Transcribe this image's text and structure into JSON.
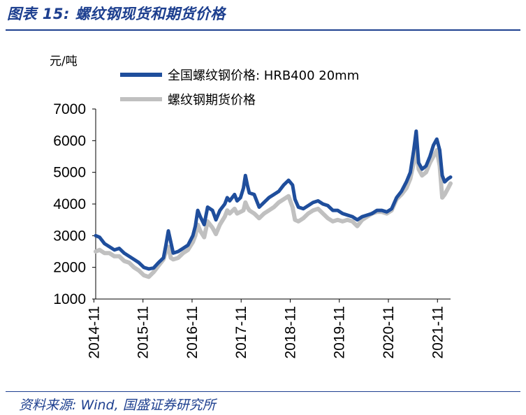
{
  "figure": {
    "title": "图表 15:  螺纹钢现货和期货价格",
    "source": "资料来源: Wind, 国盛证券研究所"
  },
  "chart_data": {
    "type": "line",
    "unit_label": "元/吨",
    "ylim": [
      1000,
      7000
    ],
    "yticks": [
      "7000",
      "6000",
      "5000",
      "4000",
      "3000",
      "2000",
      "1000"
    ],
    "xticks": [
      "2014-11",
      "2015-11",
      "2016-11",
      "2017-11",
      "2018-11",
      "2019-11",
      "2020-11",
      "2021-11"
    ],
    "x_range": [
      2014.87,
      2022.1
    ],
    "legend_position": "top-left",
    "series": [
      {
        "name": "全国螺纹钢价格: HRB400 20mm",
        "color": "#1f4e9c",
        "points": [
          [
            2014.87,
            3000
          ],
          [
            2014.95,
            2950
          ],
          [
            2015.05,
            2750
          ],
          [
            2015.15,
            2650
          ],
          [
            2015.25,
            2550
          ],
          [
            2015.35,
            2600
          ],
          [
            2015.45,
            2450
          ],
          [
            2015.55,
            2350
          ],
          [
            2015.65,
            2250
          ],
          [
            2015.75,
            2150
          ],
          [
            2015.85,
            2000
          ],
          [
            2015.95,
            1950
          ],
          [
            2016.05,
            1980
          ],
          [
            2016.15,
            2150
          ],
          [
            2016.25,
            2300
          ],
          [
            2016.3,
            2700
          ],
          [
            2016.35,
            3150
          ],
          [
            2016.4,
            2800
          ],
          [
            2016.45,
            2450
          ],
          [
            2016.55,
            2500
          ],
          [
            2016.65,
            2600
          ],
          [
            2016.75,
            2700
          ],
          [
            2016.85,
            3000
          ],
          [
            2016.9,
            3300
          ],
          [
            2016.95,
            3800
          ],
          [
            2017.0,
            3600
          ],
          [
            2017.08,
            3350
          ],
          [
            2017.15,
            3900
          ],
          [
            2017.25,
            3800
          ],
          [
            2017.32,
            3500
          ],
          [
            2017.4,
            3800
          ],
          [
            2017.5,
            4000
          ],
          [
            2017.55,
            4200
          ],
          [
            2017.6,
            4100
          ],
          [
            2017.7,
            4300
          ],
          [
            2017.75,
            4100
          ],
          [
            2017.82,
            4200
          ],
          [
            2017.88,
            4500
          ],
          [
            2017.92,
            4900
          ],
          [
            2017.96,
            4600
          ],
          [
            2018.0,
            4350
          ],
          [
            2018.1,
            4300
          ],
          [
            2018.2,
            3900
          ],
          [
            2018.3,
            4050
          ],
          [
            2018.4,
            4200
          ],
          [
            2018.5,
            4300
          ],
          [
            2018.6,
            4400
          ],
          [
            2018.7,
            4600
          ],
          [
            2018.8,
            4750
          ],
          [
            2018.88,
            4600
          ],
          [
            2018.93,
            4150
          ],
          [
            2019.0,
            3900
          ],
          [
            2019.1,
            3850
          ],
          [
            2019.2,
            3950
          ],
          [
            2019.3,
            4050
          ],
          [
            2019.4,
            4100
          ],
          [
            2019.5,
            4000
          ],
          [
            2019.6,
            3950
          ],
          [
            2019.7,
            3800
          ],
          [
            2019.8,
            3800
          ],
          [
            2019.9,
            3700
          ],
          [
            2020.0,
            3650
          ],
          [
            2020.1,
            3600
          ],
          [
            2020.2,
            3500
          ],
          [
            2020.3,
            3600
          ],
          [
            2020.4,
            3650
          ],
          [
            2020.5,
            3700
          ],
          [
            2020.6,
            3800
          ],
          [
            2020.7,
            3800
          ],
          [
            2020.8,
            3750
          ],
          [
            2020.9,
            3850
          ],
          [
            2021.0,
            4200
          ],
          [
            2021.1,
            4400
          ],
          [
            2021.2,
            4700
          ],
          [
            2021.28,
            5000
          ],
          [
            2021.35,
            5700
          ],
          [
            2021.4,
            6300
          ],
          [
            2021.45,
            5300
          ],
          [
            2021.52,
            5100
          ],
          [
            2021.6,
            5200
          ],
          [
            2021.68,
            5500
          ],
          [
            2021.75,
            5850
          ],
          [
            2021.82,
            6050
          ],
          [
            2021.88,
            5700
          ],
          [
            2021.93,
            4900
          ],
          [
            2021.98,
            4700
          ],
          [
            2022.05,
            4800
          ],
          [
            2022.1,
            4850
          ]
        ]
      },
      {
        "name": "螺纹钢期货价格",
        "color": "#c0c0c0",
        "points": [
          [
            2014.87,
            2500
          ],
          [
            2014.95,
            2550
          ],
          [
            2015.05,
            2450
          ],
          [
            2015.15,
            2450
          ],
          [
            2015.25,
            2350
          ],
          [
            2015.35,
            2350
          ],
          [
            2015.45,
            2200
          ],
          [
            2015.55,
            2150
          ],
          [
            2015.65,
            2000
          ],
          [
            2015.75,
            1900
          ],
          [
            2015.85,
            1750
          ],
          [
            2015.95,
            1700
          ],
          [
            2016.05,
            1850
          ],
          [
            2016.15,
            2050
          ],
          [
            2016.25,
            2250
          ],
          [
            2016.3,
            2500
          ],
          [
            2016.35,
            2650
          ],
          [
            2016.4,
            2300
          ],
          [
            2016.45,
            2250
          ],
          [
            2016.55,
            2300
          ],
          [
            2016.65,
            2450
          ],
          [
            2016.75,
            2550
          ],
          [
            2016.85,
            2800
          ],
          [
            2016.9,
            3000
          ],
          [
            2016.95,
            3350
          ],
          [
            2017.0,
            3150
          ],
          [
            2017.08,
            2950
          ],
          [
            2017.15,
            3450
          ],
          [
            2017.25,
            3250
          ],
          [
            2017.32,
            3050
          ],
          [
            2017.4,
            3350
          ],
          [
            2017.5,
            3600
          ],
          [
            2017.55,
            3800
          ],
          [
            2017.6,
            3700
          ],
          [
            2017.7,
            3850
          ],
          [
            2017.75,
            3700
          ],
          [
            2017.82,
            3750
          ],
          [
            2017.88,
            3800
          ],
          [
            2017.92,
            4050
          ],
          [
            2017.96,
            3900
          ],
          [
            2018.0,
            3800
          ],
          [
            2018.1,
            3700
          ],
          [
            2018.2,
            3550
          ],
          [
            2018.3,
            3700
          ],
          [
            2018.4,
            3800
          ],
          [
            2018.5,
            3900
          ],
          [
            2018.6,
            4050
          ],
          [
            2018.7,
            4150
          ],
          [
            2018.8,
            4250
          ],
          [
            2018.88,
            3900
          ],
          [
            2018.93,
            3500
          ],
          [
            2019.0,
            3450
          ],
          [
            2019.1,
            3550
          ],
          [
            2019.2,
            3700
          ],
          [
            2019.3,
            3800
          ],
          [
            2019.4,
            3850
          ],
          [
            2019.5,
            3700
          ],
          [
            2019.6,
            3550
          ],
          [
            2019.7,
            3450
          ],
          [
            2019.8,
            3500
          ],
          [
            2019.9,
            3450
          ],
          [
            2020.0,
            3500
          ],
          [
            2020.1,
            3450
          ],
          [
            2020.2,
            3300
          ],
          [
            2020.3,
            3500
          ],
          [
            2020.4,
            3600
          ],
          [
            2020.5,
            3700
          ],
          [
            2020.6,
            3750
          ],
          [
            2020.7,
            3750
          ],
          [
            2020.8,
            3700
          ],
          [
            2020.9,
            3800
          ],
          [
            2021.0,
            4150
          ],
          [
            2021.1,
            4300
          ],
          [
            2021.2,
            4500
          ],
          [
            2021.28,
            4800
          ],
          [
            2021.35,
            5300
          ],
          [
            2021.4,
            5800
          ],
          [
            2021.45,
            5100
          ],
          [
            2021.52,
            4900
          ],
          [
            2021.6,
            5000
          ],
          [
            2021.68,
            5300
          ],
          [
            2021.75,
            5500
          ],
          [
            2021.82,
            5700
          ],
          [
            2021.88,
            5200
          ],
          [
            2021.93,
            4200
          ],
          [
            2021.98,
            4300
          ],
          [
            2022.05,
            4500
          ],
          [
            2022.1,
            4650
          ]
        ]
      }
    ]
  }
}
